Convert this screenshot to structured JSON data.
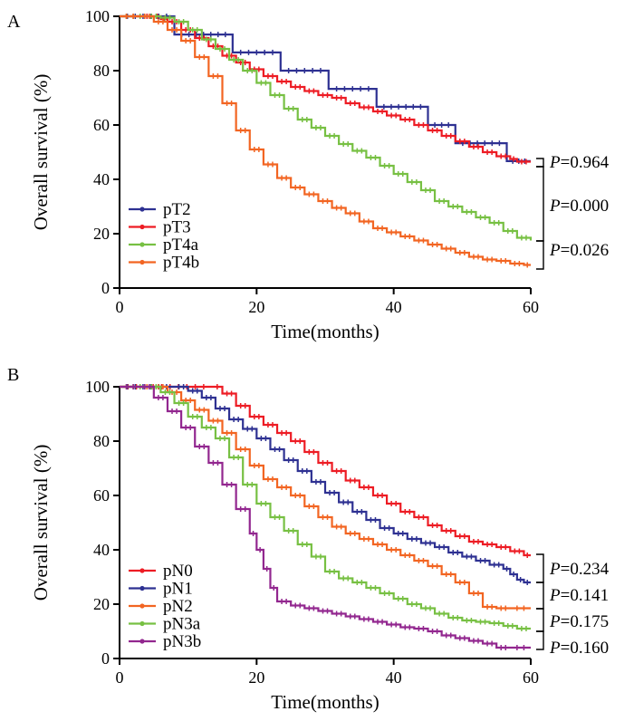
{
  "chart_data": [
    {
      "type": "line",
      "panel_label": "A",
      "title": "",
      "xlabel": "Time(months)",
      "ylabel": "Overall survival (%)",
      "xlim": [
        0,
        60
      ],
      "ylim": [
        0,
        100
      ],
      "xticks": [
        0,
        20,
        40,
        60
      ],
      "yticks": [
        0,
        20,
        40,
        60,
        80,
        100
      ],
      "legend_position": "bottom-left",
      "series": [
        {
          "name": "pT2",
          "color": "#2e3192",
          "points": [
            [
              0,
              100
            ],
            [
              8,
              100
            ],
            [
              8,
              93.3
            ],
            [
              16.5,
              93.3
            ],
            [
              16.5,
              86.7
            ],
            [
              23.5,
              86.7
            ],
            [
              23.5,
              80
            ],
            [
              30.5,
              80
            ],
            [
              30.5,
              73.3
            ],
            [
              37.5,
              73.3
            ],
            [
              37.5,
              66.7
            ],
            [
              45,
              66.7
            ],
            [
              45,
              60
            ],
            [
              49,
              60
            ],
            [
              49,
              53.3
            ],
            [
              56.5,
              53.3
            ],
            [
              56.5,
              46.7
            ],
            [
              60,
              46.7
            ]
          ]
        },
        {
          "name": "pT3",
          "color": "#ed1c24",
          "points": [
            [
              0,
              100
            ],
            [
              5,
              100
            ],
            [
              6,
              99
            ],
            [
              7,
              98
            ],
            [
              9,
              95
            ],
            [
              11,
              92
            ],
            [
              13,
              89
            ],
            [
              15,
              85.5
            ],
            [
              17,
              83
            ],
            [
              19,
              80.5
            ],
            [
              21,
              78
            ],
            [
              23,
              76
            ],
            [
              25,
              74
            ],
            [
              27,
              72.5
            ],
            [
              29,
              71
            ],
            [
              31,
              70
            ],
            [
              33,
              68
            ],
            [
              35,
              66.5
            ],
            [
              37,
              65
            ],
            [
              39,
              63.5
            ],
            [
              41,
              62
            ],
            [
              43,
              60
            ],
            [
              45,
              58
            ],
            [
              47,
              56
            ],
            [
              49,
              54
            ],
            [
              51,
              52
            ],
            [
              53,
              50
            ],
            [
              55,
              48.5
            ],
            [
              57,
              47.5
            ],
            [
              58,
              46.5
            ],
            [
              60,
              46.5
            ]
          ]
        },
        {
          "name": "pT4a",
          "color": "#77c043",
          "points": [
            [
              0,
              100
            ],
            [
              4,
              100
            ],
            [
              6,
              99.5
            ],
            [
              8,
              98
            ],
            [
              10,
              95
            ],
            [
              12,
              91.5
            ],
            [
              14,
              88
            ],
            [
              16,
              84
            ],
            [
              18,
              80
            ],
            [
              20,
              75.5
            ],
            [
              22,
              71
            ],
            [
              24,
              66
            ],
            [
              26,
              62
            ],
            [
              28,
              59
            ],
            [
              30,
              56
            ],
            [
              32,
              53
            ],
            [
              34,
              50.5
            ],
            [
              36,
              48
            ],
            [
              38,
              45
            ],
            [
              40,
              42
            ],
            [
              42,
              39
            ],
            [
              44,
              36
            ],
            [
              46,
              32
            ],
            [
              48,
              30
            ],
            [
              50,
              28
            ],
            [
              52,
              26
            ],
            [
              54,
              24
            ],
            [
              56,
              21
            ],
            [
              58,
              18.5
            ],
            [
              60,
              17.5
            ]
          ]
        },
        {
          "name": "pT4b",
          "color": "#f26522",
          "points": [
            [
              0,
              100
            ],
            [
              3,
              100
            ],
            [
              5,
              98
            ],
            [
              7,
              95
            ],
            [
              9,
              91
            ],
            [
              11,
              85
            ],
            [
              13,
              78
            ],
            [
              15,
              68
            ],
            [
              17,
              58
            ],
            [
              19,
              51
            ],
            [
              21,
              45.5
            ],
            [
              23,
              40.5
            ],
            [
              25,
              37
            ],
            [
              27,
              34.5
            ],
            [
              29,
              32
            ],
            [
              31,
              29.5
            ],
            [
              33,
              27.5
            ],
            [
              35,
              24.5
            ],
            [
              37,
              22
            ],
            [
              39,
              20.5
            ],
            [
              41,
              19
            ],
            [
              43,
              17.5
            ],
            [
              45,
              16
            ],
            [
              47,
              14.5
            ],
            [
              49,
              13
            ],
            [
              51,
              11.5
            ],
            [
              53,
              10.5
            ],
            [
              55,
              10
            ],
            [
              57,
              9
            ],
            [
              59,
              8.5
            ],
            [
              60,
              8.5
            ]
          ]
        }
      ],
      "p_values": [
        {
          "label": "P",
          "value": "=0.964",
          "between": [
            "pT2",
            "pT3"
          ]
        },
        {
          "label": "P",
          "value": "=0.000",
          "between": [
            "pT3",
            "pT4a"
          ]
        },
        {
          "label": "P",
          "value": "=0.026",
          "between": [
            "pT4a",
            "pT4b"
          ]
        }
      ]
    },
    {
      "type": "line",
      "panel_label": "B",
      "title": "",
      "xlabel": "Time(months)",
      "ylabel": "Overall survival (%)",
      "xlim": [
        0,
        60
      ],
      "ylim": [
        0,
        100
      ],
      "xticks": [
        0,
        20,
        40,
        60
      ],
      "yticks": [
        0,
        20,
        40,
        60,
        80,
        100
      ],
      "legend_position": "bottom-left",
      "series": [
        {
          "name": "pN0",
          "color": "#ed1c24",
          "points": [
            [
              0,
              100
            ],
            [
              13.5,
              100
            ],
            [
              15,
              97.5
            ],
            [
              17,
              93
            ],
            [
              19,
              89
            ],
            [
              21,
              86
            ],
            [
              23,
              83
            ],
            [
              25,
              80
            ],
            [
              27,
              76
            ],
            [
              29,
              72
            ],
            [
              31,
              69
            ],
            [
              33,
              65.5
            ],
            [
              35,
              63
            ],
            [
              37,
              60
            ],
            [
              39,
              57
            ],
            [
              41,
              54
            ],
            [
              43,
              52
            ],
            [
              45,
              49
            ],
            [
              47,
              47
            ],
            [
              49,
              45
            ],
            [
              51,
              43
            ],
            [
              53,
              42
            ],
            [
              55,
              41
            ],
            [
              57,
              39.5
            ],
            [
              59,
              38
            ],
            [
              60,
              38
            ]
          ]
        },
        {
          "name": "pN1",
          "color": "#2e3192",
          "points": [
            [
              0,
              100
            ],
            [
              8,
              100
            ],
            [
              10,
              98.5
            ],
            [
              12,
              96
            ],
            [
              14,
              92
            ],
            [
              16,
              88
            ],
            [
              18,
              84.5
            ],
            [
              20,
              81
            ],
            [
              22,
              77
            ],
            [
              24,
              73
            ],
            [
              26,
              69
            ],
            [
              28,
              65
            ],
            [
              30,
              61
            ],
            [
              32,
              57.5
            ],
            [
              34,
              54
            ],
            [
              36,
              51
            ],
            [
              38,
              48
            ],
            [
              40,
              46
            ],
            [
              42,
              44
            ],
            [
              44,
              42.5
            ],
            [
              46,
              41
            ],
            [
              48,
              39
            ],
            [
              50,
              37.5
            ],
            [
              52,
              36
            ],
            [
              54,
              34.5
            ],
            [
              56,
              33
            ],
            [
              57,
              31
            ],
            [
              58,
              29
            ],
            [
              59,
              28
            ],
            [
              60,
              28
            ]
          ]
        },
        {
          "name": "pN2",
          "color": "#f26522",
          "points": [
            [
              0,
              100
            ],
            [
              5,
              100
            ],
            [
              7,
              98
            ],
            [
              9,
              95
            ],
            [
              11,
              91.5
            ],
            [
              13,
              87.5
            ],
            [
              15,
              83
            ],
            [
              17,
              77
            ],
            [
              19,
              71
            ],
            [
              21,
              66
            ],
            [
              23,
              63
            ],
            [
              25,
              60
            ],
            [
              27,
              56
            ],
            [
              29,
              52
            ],
            [
              31,
              48.5
            ],
            [
              33,
              46
            ],
            [
              35,
              44
            ],
            [
              37,
              42
            ],
            [
              39,
              40
            ],
            [
              41,
              38
            ],
            [
              43,
              36
            ],
            [
              45,
              34
            ],
            [
              47,
              31
            ],
            [
              49,
              28
            ],
            [
              51,
              24
            ],
            [
              53,
              19
            ],
            [
              55,
              18.5
            ],
            [
              57,
              18.5
            ],
            [
              60,
              18.5
            ]
          ]
        },
        {
          "name": "pN3a",
          "color": "#77c043",
          "points": [
            [
              0,
              100
            ],
            [
              4,
              100
            ],
            [
              6,
              98
            ],
            [
              8,
              94
            ],
            [
              10,
              89
            ],
            [
              12,
              85
            ],
            [
              14,
              81
            ],
            [
              16,
              74
            ],
            [
              18,
              64
            ],
            [
              20,
              57
            ],
            [
              22,
              52
            ],
            [
              24,
              47
            ],
            [
              26,
              42
            ],
            [
              28,
              37.5
            ],
            [
              30,
              32
            ],
            [
              32,
              29.5
            ],
            [
              34,
              28
            ],
            [
              36,
              26
            ],
            [
              38,
              24
            ],
            [
              40,
              22
            ],
            [
              42,
              20
            ],
            [
              44,
              18.5
            ],
            [
              46,
              16.5
            ],
            [
              48,
              15
            ],
            [
              50,
              14
            ],
            [
              52,
              13.5
            ],
            [
              54,
              13
            ],
            [
              56,
              12
            ],
            [
              58,
              11
            ],
            [
              60,
              11
            ]
          ]
        },
        {
          "name": "pN3b",
          "color": "#92278f",
          "points": [
            [
              0,
              100
            ],
            [
              3,
              100
            ],
            [
              5,
              96
            ],
            [
              7,
              91
            ],
            [
              9,
              85
            ],
            [
              11,
              78
            ],
            [
              13,
              72
            ],
            [
              15,
              64
            ],
            [
              17,
              55
            ],
            [
              19,
              46
            ],
            [
              20,
              40
            ],
            [
              21,
              33
            ],
            [
              22,
              26
            ],
            [
              23,
              21
            ],
            [
              25,
              19.5
            ],
            [
              27,
              18.5
            ],
            [
              29,
              17.5
            ],
            [
              31,
              16.5
            ],
            [
              33,
              15.5
            ],
            [
              35,
              14.5
            ],
            [
              37,
              13.5
            ],
            [
              39,
              12.5
            ],
            [
              41,
              11.5
            ],
            [
              43,
              11
            ],
            [
              45,
              10
            ],
            [
              47,
              8.5
            ],
            [
              49,
              7.5
            ],
            [
              51,
              6.5
            ],
            [
              53,
              5.5
            ],
            [
              55,
              4
            ],
            [
              57,
              4
            ],
            [
              60,
              4
            ]
          ]
        }
      ],
      "p_values": [
        {
          "label": "P",
          "value": "=0.234",
          "between": [
            "pN0",
            "pN1"
          ]
        },
        {
          "label": "P",
          "value": "=0.141",
          "between": [
            "pN1",
            "pN2"
          ]
        },
        {
          "label": "P",
          "value": "=0.175",
          "between": [
            "pN2",
            "pN3a"
          ]
        },
        {
          "label": "P",
          "value": "=0.160",
          "between": [
            "pN3a",
            "pN3b"
          ]
        }
      ]
    }
  ]
}
